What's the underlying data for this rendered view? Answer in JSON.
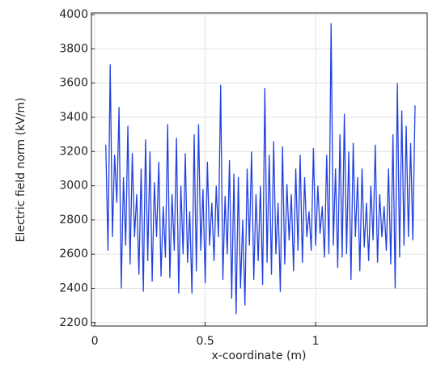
{
  "chart_data": {
    "type": "line",
    "x_label": "x-coordinate (m)",
    "y_label": "Electric field norm (kV/m)",
    "xlim": [
      -0.015,
      1.505
    ],
    "ylim": [
      2180,
      4010
    ],
    "xticks": [
      0,
      0.5,
      1
    ],
    "yticks": [
      2200,
      2400,
      2600,
      2800,
      3000,
      3200,
      3400,
      3600,
      3800,
      4000
    ],
    "grid": true,
    "series": [
      {
        "color": "#2040e0",
        "x": [
          0.05,
          0.06,
          0.07,
          0.08,
          0.09,
          0.1,
          0.11,
          0.12,
          0.13,
          0.14,
          0.15,
          0.16,
          0.17,
          0.18,
          0.19,
          0.2,
          0.21,
          0.22,
          0.23,
          0.24,
          0.25,
          0.26,
          0.27,
          0.28,
          0.29,
          0.3,
          0.31,
          0.32,
          0.33,
          0.34,
          0.35,
          0.36,
          0.37,
          0.38,
          0.39,
          0.4,
          0.41,
          0.42,
          0.43,
          0.44,
          0.45,
          0.46,
          0.47,
          0.48,
          0.49,
          0.5,
          0.51,
          0.52,
          0.53,
          0.54,
          0.55,
          0.56,
          0.57,
          0.58,
          0.59,
          0.6,
          0.61,
          0.62,
          0.63,
          0.64,
          0.65,
          0.66,
          0.67,
          0.68,
          0.69,
          0.7,
          0.71,
          0.72,
          0.73,
          0.74,
          0.75,
          0.76,
          0.77,
          0.78,
          0.79,
          0.8,
          0.81,
          0.82,
          0.83,
          0.84,
          0.85,
          0.86,
          0.87,
          0.88,
          0.89,
          0.9,
          0.91,
          0.92,
          0.93,
          0.94,
          0.95,
          0.96,
          0.97,
          0.98,
          0.99,
          1.0,
          1.01,
          1.02,
          1.03,
          1.04,
          1.05,
          1.06,
          1.07,
          1.08,
          1.09,
          1.1,
          1.11,
          1.12,
          1.13,
          1.14,
          1.15,
          1.16,
          1.17,
          1.18,
          1.19,
          1.2,
          1.21,
          1.22,
          1.23,
          1.24,
          1.25,
          1.26,
          1.27,
          1.28,
          1.29,
          1.3,
          1.31,
          1.32,
          1.33,
          1.34,
          1.35,
          1.36,
          1.37,
          1.38,
          1.39,
          1.4,
          1.41,
          1.42,
          1.43,
          1.44,
          1.45
        ],
        "values": [
          3240,
          2620,
          3710,
          2700,
          3180,
          2900,
          3460,
          2400,
          3050,
          2650,
          3350,
          2540,
          3190,
          2700,
          2950,
          2480,
          3100,
          2380,
          3270,
          2560,
          3200,
          2440,
          3020,
          2700,
          3140,
          2470,
          2880,
          2580,
          3360,
          2460,
          2950,
          2620,
          3280,
          2370,
          3000,
          2600,
          3190,
          2550,
          2850,
          2370,
          3300,
          2500,
          3360,
          2620,
          2980,
          2430,
          3140,
          2650,
          2900,
          2560,
          3000,
          2700,
          3590,
          2450,
          2940,
          2600,
          3150,
          2340,
          3070,
          2250,
          3050,
          2400,
          2800,
          2300,
          3100,
          2650,
          3200,
          2450,
          2950,
          2560,
          3000,
          2420,
          3570,
          2550,
          3180,
          2480,
          3260,
          2600,
          2900,
          2380,
          3230,
          2540,
          3010,
          2680,
          2950,
          2500,
          3100,
          2620,
          3180,
          2550,
          3050,
          2700,
          2850,
          2620,
          3220,
          2650,
          3000,
          2720,
          2880,
          2580,
          3180,
          2600,
          3950,
          2650,
          3100,
          2520,
          3300,
          2580,
          3420,
          2600,
          3200,
          2450,
          3250,
          2700,
          3050,
          2500,
          3100,
          2640,
          2900,
          2560,
          3000,
          2680,
          3240,
          2550,
          2950,
          2700,
          2880,
          2620,
          3100,
          2540,
          3300,
          2400,
          3600,
          2580,
          3440,
          2650,
          3350,
          2700,
          3250,
          2680,
          3470
        ]
      }
    ]
  }
}
